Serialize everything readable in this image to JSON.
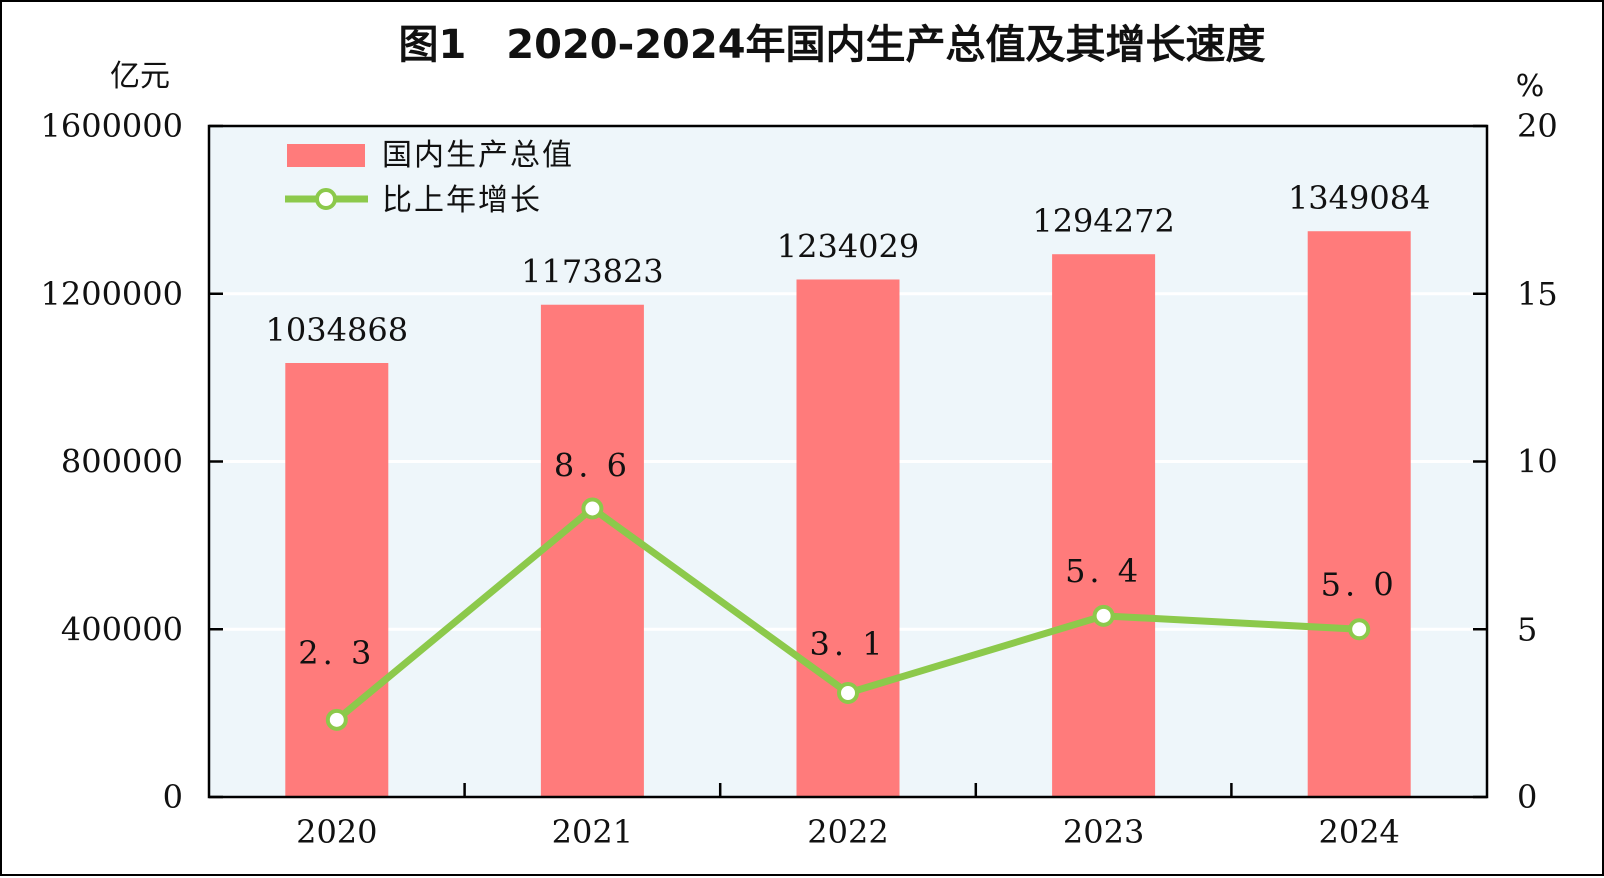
{
  "chart_data": {
    "type": "bar",
    "title": "图1　2020-2024年国内生产总值及其增长速度",
    "y_left_unit": "亿元",
    "y_right_unit": "%",
    "categories": [
      "2020",
      "2021",
      "2022",
      "2023",
      "2024"
    ],
    "y_left_ticks": [
      "0",
      "400000",
      "800000",
      "1200000",
      "1600000"
    ],
    "y_right_ticks": [
      "0",
      "5",
      "10",
      "15",
      "20"
    ],
    "ylim_left": [
      0,
      1600000
    ],
    "ylim_right": [
      0,
      20
    ],
    "grid": true,
    "legend_placement": "top-left",
    "series": [
      {
        "name": "国内生产总值",
        "type": "bar",
        "axis": "left",
        "color": "#ff7b7b",
        "values": [
          1034868,
          1173823,
          1234029,
          1294272,
          1349084
        ],
        "labels": [
          "1034868",
          "1173823",
          "1234029",
          "1294272",
          "1349084"
        ]
      },
      {
        "name": "比上年增长",
        "type": "line",
        "axis": "right",
        "color": "#8cc94b",
        "values": [
          2.3,
          8.6,
          3.1,
          5.4,
          5.0
        ],
        "labels": [
          "2. 3",
          "8. 6",
          "3. 1",
          "5. 4",
          "5. 0"
        ]
      }
    ],
    "plot_background": "#eef6fa"
  }
}
